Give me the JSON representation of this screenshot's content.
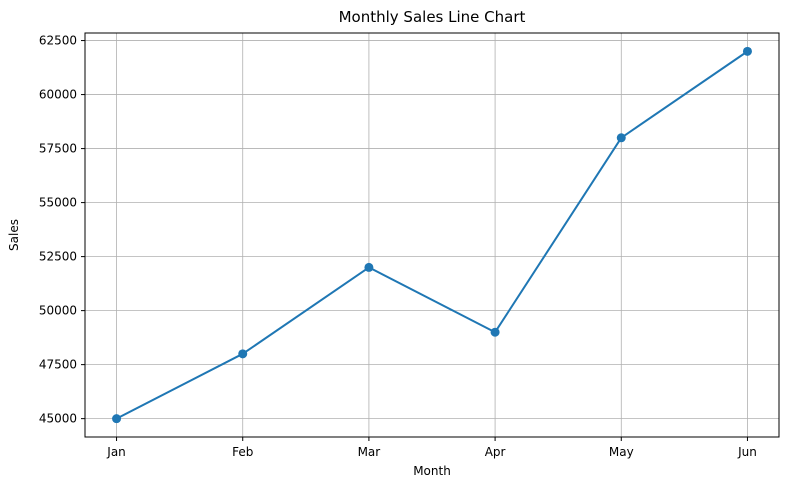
{
  "chart_data": {
    "type": "line",
    "title": "Monthly Sales Line Chart",
    "xlabel": "Month",
    "ylabel": "Sales",
    "categories": [
      "Jan",
      "Feb",
      "Mar",
      "Apr",
      "May",
      "Jun"
    ],
    "series": [
      {
        "name": "Sales",
        "values": [
          45000,
          48000,
          52000,
          49000,
          58000,
          62000
        ]
      }
    ],
    "yticks": [
      45000,
      47500,
      50000,
      52500,
      55000,
      57500,
      60000,
      62500
    ],
    "ylim": [
      44150,
      62850
    ],
    "x_margin": 0.25,
    "grid": true,
    "legend": "none",
    "colors": {
      "line": "#1f77b4",
      "marker": "#1f77b4",
      "grid": "#b0b0b0",
      "spine": "#000000",
      "background": "#ffffff"
    }
  }
}
